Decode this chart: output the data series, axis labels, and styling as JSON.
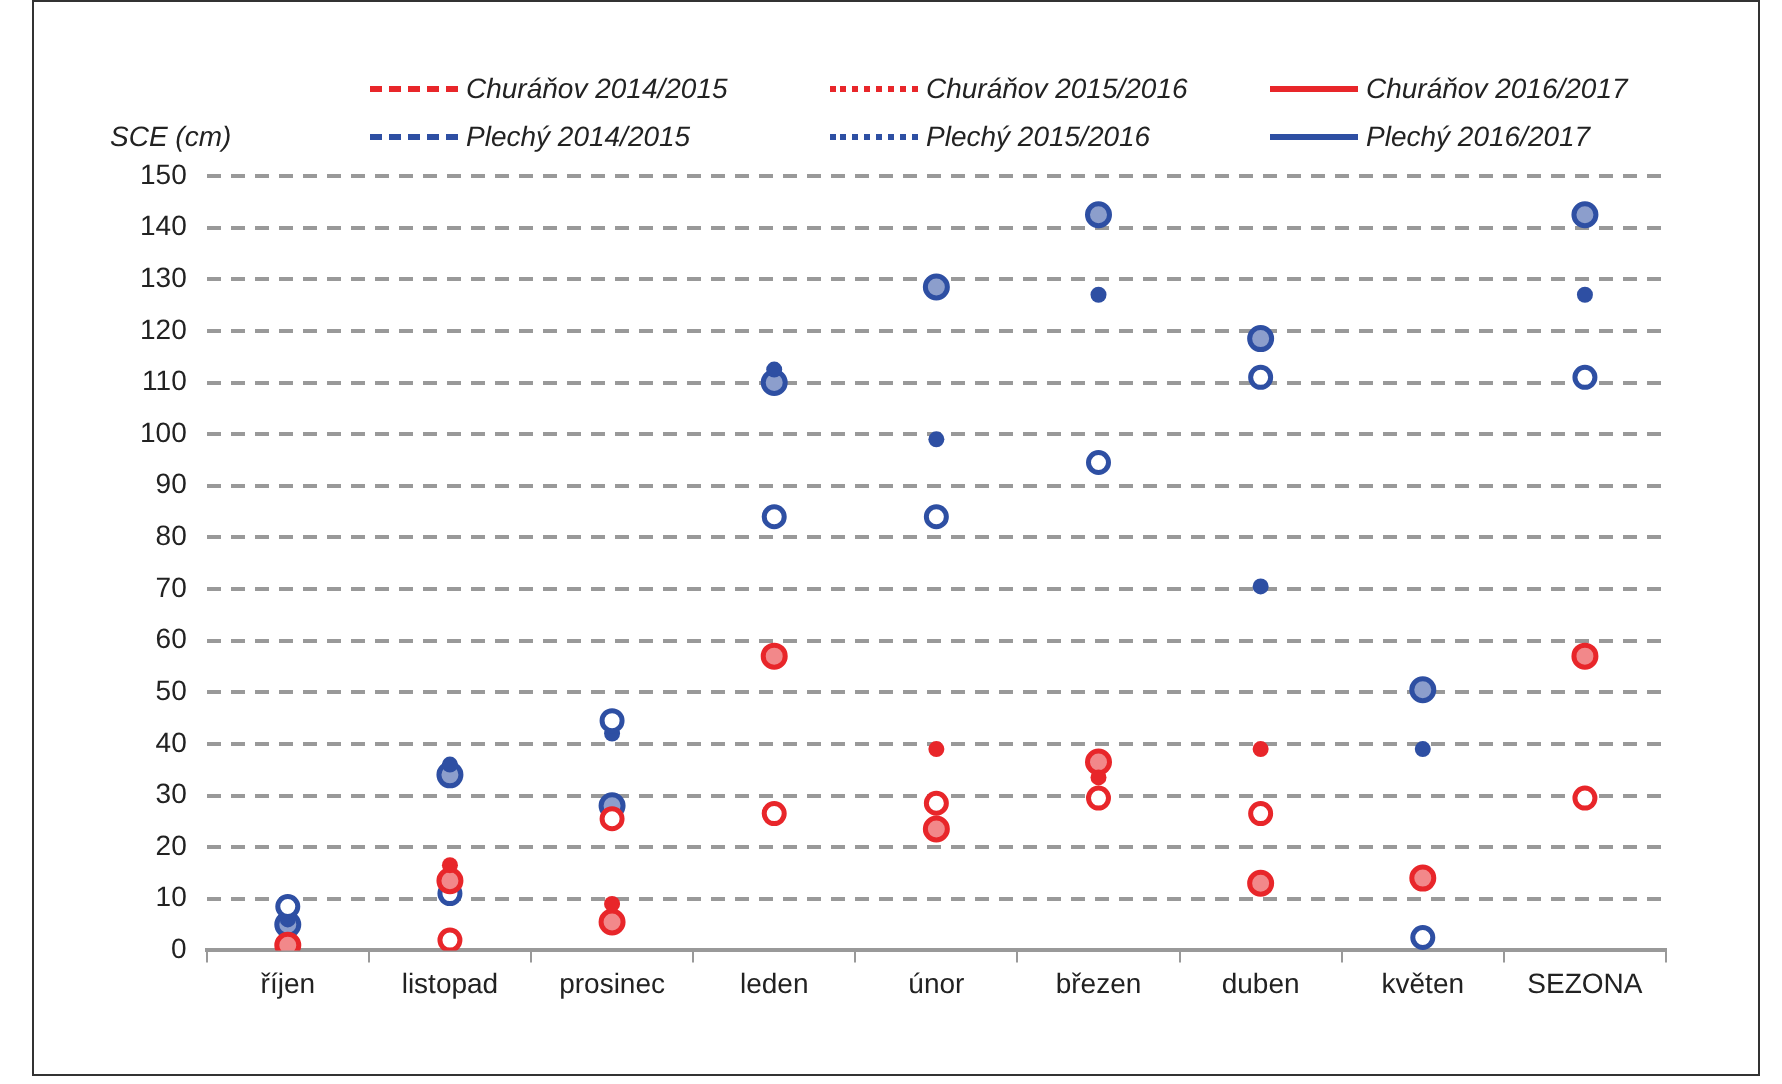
{
  "chart_data": {
    "type": "scatter",
    "ylabel": "SCE (cm)",
    "categories": [
      "říjen",
      "listopad",
      "prosinec",
      "leden",
      "únor",
      "březen",
      "duben",
      "květen",
      "SEZONA"
    ],
    "series": [
      {
        "name": "Churáňov 2014/2015",
        "color": "#e8262a",
        "line_style": "dashed",
        "values": [
          null,
          2,
          25.5,
          26.5,
          28.5,
          29.5,
          26.5,
          null,
          29.5
        ]
      },
      {
        "name": "Churáňov 2015/2016",
        "color": "#e8262a",
        "line_style": "dotted",
        "values": [
          null,
          16.5,
          9,
          null,
          39,
          33.5,
          39,
          null,
          null
        ]
      },
      {
        "name": "Churáňov 2016/2017",
        "color": "#e8262a",
        "line_style": "solid",
        "values": [
          1,
          13.5,
          5.5,
          57,
          23.5,
          36.5,
          13,
          14,
          57
        ]
      },
      {
        "name": "Plechý 2014/2015",
        "color": "#2e4fa3",
        "line_style": "dashed",
        "values": [
          8.5,
          11,
          44.5,
          84,
          84,
          94.5,
          111,
          2.5,
          111
        ]
      },
      {
        "name": "Plechý 2015/2016",
        "color": "#2e4fa3",
        "line_style": "dotted",
        "values": [
          6,
          36,
          42,
          112.5,
          99,
          127,
          70.5,
          39,
          127
        ]
      },
      {
        "name": "Plechý 2016/2017",
        "color": "#2e4fa3",
        "line_style": "solid",
        "values": [
          5,
          34,
          28,
          110,
          128.5,
          142.5,
          118.5,
          50.5,
          142.5
        ]
      }
    ],
    "ylim": [
      0,
      150
    ],
    "yticks": [
      0,
      10,
      20,
      30,
      40,
      50,
      60,
      70,
      80,
      90,
      100,
      110,
      120,
      130,
      140,
      150
    ],
    "grid": "y",
    "legend": "top",
    "marker": "circle"
  }
}
